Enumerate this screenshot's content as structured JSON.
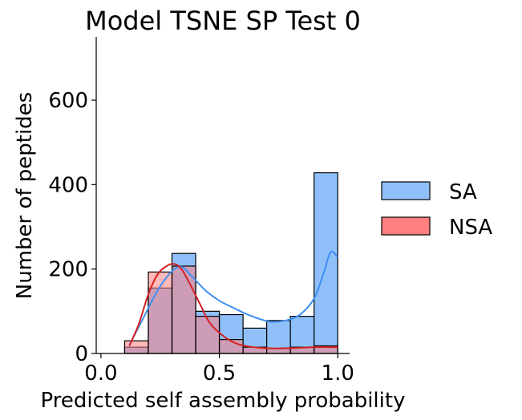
{
  "chart_data": {
    "type": "histogram",
    "title": "Model TSNE SP Test 0",
    "xlabel": "Predicted self assembly probability",
    "ylabel": "Number of peptides",
    "xlim": [
      -0.02,
      1.05
    ],
    "ylim": [
      0,
      750
    ],
    "x_ticks": [
      0.0,
      0.5,
      1.0
    ],
    "x_tick_labels": [
      "0.0",
      "0.5",
      "1.0"
    ],
    "y_ticks": [
      0,
      200,
      400,
      600
    ],
    "y_tick_labels": [
      "0",
      "200",
      "400",
      "600"
    ],
    "bin_edges": [
      0.0,
      0.1,
      0.2,
      0.3,
      0.4,
      0.5,
      0.6,
      0.7,
      0.8,
      0.9,
      1.0
    ],
    "grid": false,
    "legend_position": "right",
    "series": [
      {
        "name": "SA",
        "color": "#3f8ff0",
        "fill": "#90c0fa",
        "counts": [
          0,
          15,
          155,
          237,
          100,
          92,
          60,
          78,
          88,
          428
        ],
        "kde": [
          [
            0.12,
            20
          ],
          [
            0.18,
            85
          ],
          [
            0.24,
            150
          ],
          [
            0.3,
            195
          ],
          [
            0.34,
            205
          ],
          [
            0.38,
            185
          ],
          [
            0.44,
            150
          ],
          [
            0.5,
            125
          ],
          [
            0.56,
            108
          ],
          [
            0.62,
            92
          ],
          [
            0.68,
            80
          ],
          [
            0.72,
            75
          ],
          [
            0.78,
            78
          ],
          [
            0.84,
            92
          ],
          [
            0.9,
            130
          ],
          [
            0.94,
            190
          ],
          [
            0.97,
            240
          ],
          [
            1.0,
            228
          ]
        ]
      },
      {
        "name": "NSA",
        "color": "#d42020",
        "fill": "#ff8080",
        "counts": [
          0,
          30,
          193,
          207,
          88,
          33,
          15,
          12,
          15,
          18
        ],
        "kde": [
          [
            0.12,
            18
          ],
          [
            0.16,
            70
          ],
          [
            0.2,
            140
          ],
          [
            0.24,
            188
          ],
          [
            0.28,
            208
          ],
          [
            0.31,
            212
          ],
          [
            0.34,
            200
          ],
          [
            0.38,
            160
          ],
          [
            0.42,
            115
          ],
          [
            0.46,
            72
          ],
          [
            0.52,
            40
          ],
          [
            0.58,
            22
          ],
          [
            0.66,
            14
          ],
          [
            0.74,
            12
          ],
          [
            0.82,
            13
          ],
          [
            0.9,
            15
          ],
          [
            1.0,
            15
          ]
        ]
      }
    ]
  }
}
